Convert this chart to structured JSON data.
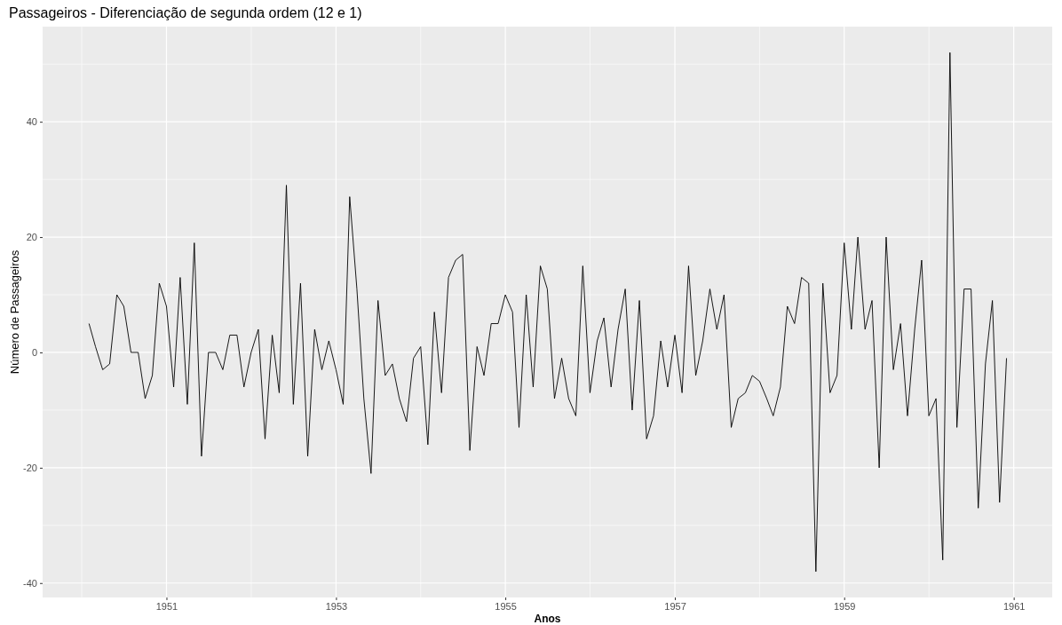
{
  "chart_data": {
    "type": "line",
    "title": "Passageiros - Diferenciação de segunda ordem (12 e 1)",
    "xlabel": "Anos",
    "ylabel": "Número de Passageiros",
    "x": [
      "1950-02",
      "1950-03",
      "1950-04",
      "1950-05",
      "1950-06",
      "1950-07",
      "1950-08",
      "1950-09",
      "1950-10",
      "1950-11",
      "1950-12",
      "1951-01",
      "1951-02",
      "1951-03",
      "1951-04",
      "1951-05",
      "1951-06",
      "1951-07",
      "1951-08",
      "1951-09",
      "1951-10",
      "1951-11",
      "1951-12",
      "1952-01",
      "1952-02",
      "1952-03",
      "1952-04",
      "1952-05",
      "1952-06",
      "1952-07",
      "1952-08",
      "1952-09",
      "1952-10",
      "1952-11",
      "1952-12",
      "1953-01",
      "1953-02",
      "1953-03",
      "1953-04",
      "1953-05",
      "1953-06",
      "1953-07",
      "1953-08",
      "1953-09",
      "1953-10",
      "1953-11",
      "1953-12",
      "1954-01",
      "1954-02",
      "1954-03",
      "1954-04",
      "1954-05",
      "1954-06",
      "1954-07",
      "1954-08",
      "1954-09",
      "1954-10",
      "1954-11",
      "1954-12",
      "1955-01",
      "1955-02",
      "1955-03",
      "1955-04",
      "1955-05",
      "1955-06",
      "1955-07",
      "1955-08",
      "1955-09",
      "1955-10",
      "1955-11",
      "1955-12",
      "1956-01",
      "1956-02",
      "1956-03",
      "1956-04",
      "1956-05",
      "1956-06",
      "1956-07",
      "1956-08",
      "1956-09",
      "1956-10",
      "1956-11",
      "1956-12",
      "1957-01",
      "1957-02",
      "1957-03",
      "1957-04",
      "1957-05",
      "1957-06",
      "1957-07",
      "1957-08",
      "1957-09",
      "1957-10",
      "1957-11",
      "1957-12",
      "1958-01",
      "1958-02",
      "1958-03",
      "1958-04",
      "1958-05",
      "1958-06",
      "1958-07",
      "1958-08",
      "1958-09",
      "1958-10",
      "1958-11",
      "1958-12",
      "1959-01",
      "1959-02",
      "1959-03",
      "1959-04",
      "1959-05",
      "1959-06",
      "1959-07",
      "1959-08",
      "1959-09",
      "1959-10",
      "1959-11",
      "1959-12",
      "1960-01",
      "1960-02",
      "1960-03",
      "1960-04",
      "1960-05",
      "1960-06",
      "1960-07",
      "1960-08",
      "1960-09",
      "1960-10",
      "1960-11",
      "1960-12"
    ],
    "series": [
      {
        "color": "#000000",
        "values": [
          5,
          1,
          -3,
          -2,
          10,
          8,
          0,
          0,
          -8,
          -4,
          12,
          8,
          -6,
          13,
          -9,
          19,
          -18,
          0,
          0,
          -3,
          3,
          3,
          -6,
          0,
          4,
          -15,
          3,
          -7,
          29,
          -9,
          12,
          -18,
          4,
          -3,
          2,
          -3,
          -9,
          27,
          11,
          -8,
          -21,
          9,
          -4,
          -2,
          -8,
          -12,
          -1,
          1,
          -16,
          7,
          -7,
          13,
          16,
          17,
          -17,
          1,
          -4,
          5,
          5,
          10,
          7,
          -13,
          10,
          -6,
          15,
          11,
          -8,
          -1,
          -8,
          -11,
          15,
          -7,
          2,
          6,
          -6,
          4,
          11,
          -10,
          9,
          -15,
          -11,
          2,
          -6,
          3,
          -7,
          15,
          -4,
          2,
          11,
          4,
          10,
          -13,
          -8,
          -7,
          -4,
          -5,
          -8,
          -11,
          -6,
          8,
          5,
          13,
          12,
          -38,
          12,
          -7,
          -4,
          19,
          4,
          20,
          4,
          9,
          -20,
          20,
          -3,
          5,
          -11,
          4,
          16,
          -11,
          -8,
          -36,
          52,
          -13,
          11,
          11,
          -27,
          -2,
          9,
          -26,
          -1
        ]
      }
    ],
    "xlim": [
      "1949-07-16",
      "1961-06-16"
    ],
    "xticks": [
      {
        "value": "1951-01",
        "label": "1951"
      },
      {
        "value": "1953-01",
        "label": "1953"
      },
      {
        "value": "1955-01",
        "label": "1955"
      },
      {
        "value": "1957-01",
        "label": "1957"
      },
      {
        "value": "1959-01",
        "label": "1959"
      },
      {
        "value": "1961-01",
        "label": "1961"
      }
    ],
    "ylim": [
      -42.5,
      56.5
    ],
    "yticks": [
      -40,
      -20,
      0,
      20,
      40
    ],
    "grid": true,
    "marker": "none",
    "line_style": "solid"
  }
}
